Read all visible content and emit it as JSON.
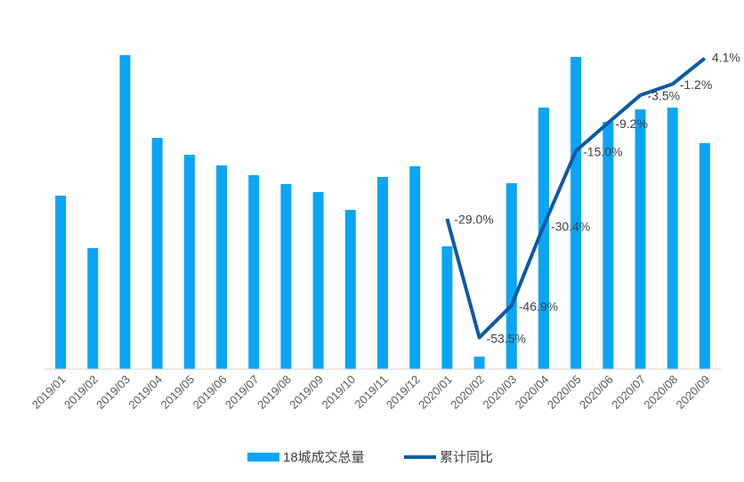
{
  "chart_data": {
    "type": "bar+line",
    "categories": [
      "2019/01",
      "2019/02",
      "2019/03",
      "2019/04",
      "2019/05",
      "2019/06",
      "2019/07",
      "2019/08",
      "2019/09",
      "2019/10",
      "2019/11",
      "2019/12",
      "2020/01",
      "2020/02",
      "2020/03",
      "2020/04",
      "2020/05",
      "2020/06",
      "2020/07",
      "2020/08",
      "2020/09"
    ],
    "ylim": [
      0,
      375
    ],
    "y2lim": [
      -60,
      8.8
    ],
    "series": [
      {
        "name": "18城成交总量",
        "type": "bar",
        "color": "#0aa5f5",
        "values": [
          195,
          136,
          353,
          260,
          241,
          229,
          218,
          208,
          199,
          179,
          216,
          228,
          138,
          14,
          209,
          294,
          351,
          278,
          292,
          294,
          254
        ]
      },
      {
        "name": "累计同比",
        "type": "line",
        "axis": "y2",
        "color": "#0b5aa6",
        "values": [
          null,
          null,
          null,
          null,
          null,
          null,
          null,
          null,
          null,
          null,
          null,
          null,
          -29.0,
          -53.5,
          -46.9,
          -30.4,
          -15.0,
          -9.2,
          -3.5,
          -1.2,
          4.1
        ],
        "value_labels": [
          null,
          null,
          null,
          null,
          null,
          null,
          null,
          null,
          null,
          null,
          null,
          null,
          "-29.0%",
          "-53.5%",
          "-46.9%",
          "-30.4%",
          "-15.0%",
          "-9.2%",
          "-3.5%",
          "-1.2%",
          "4.1%"
        ]
      }
    ],
    "legend": "bottom"
  }
}
